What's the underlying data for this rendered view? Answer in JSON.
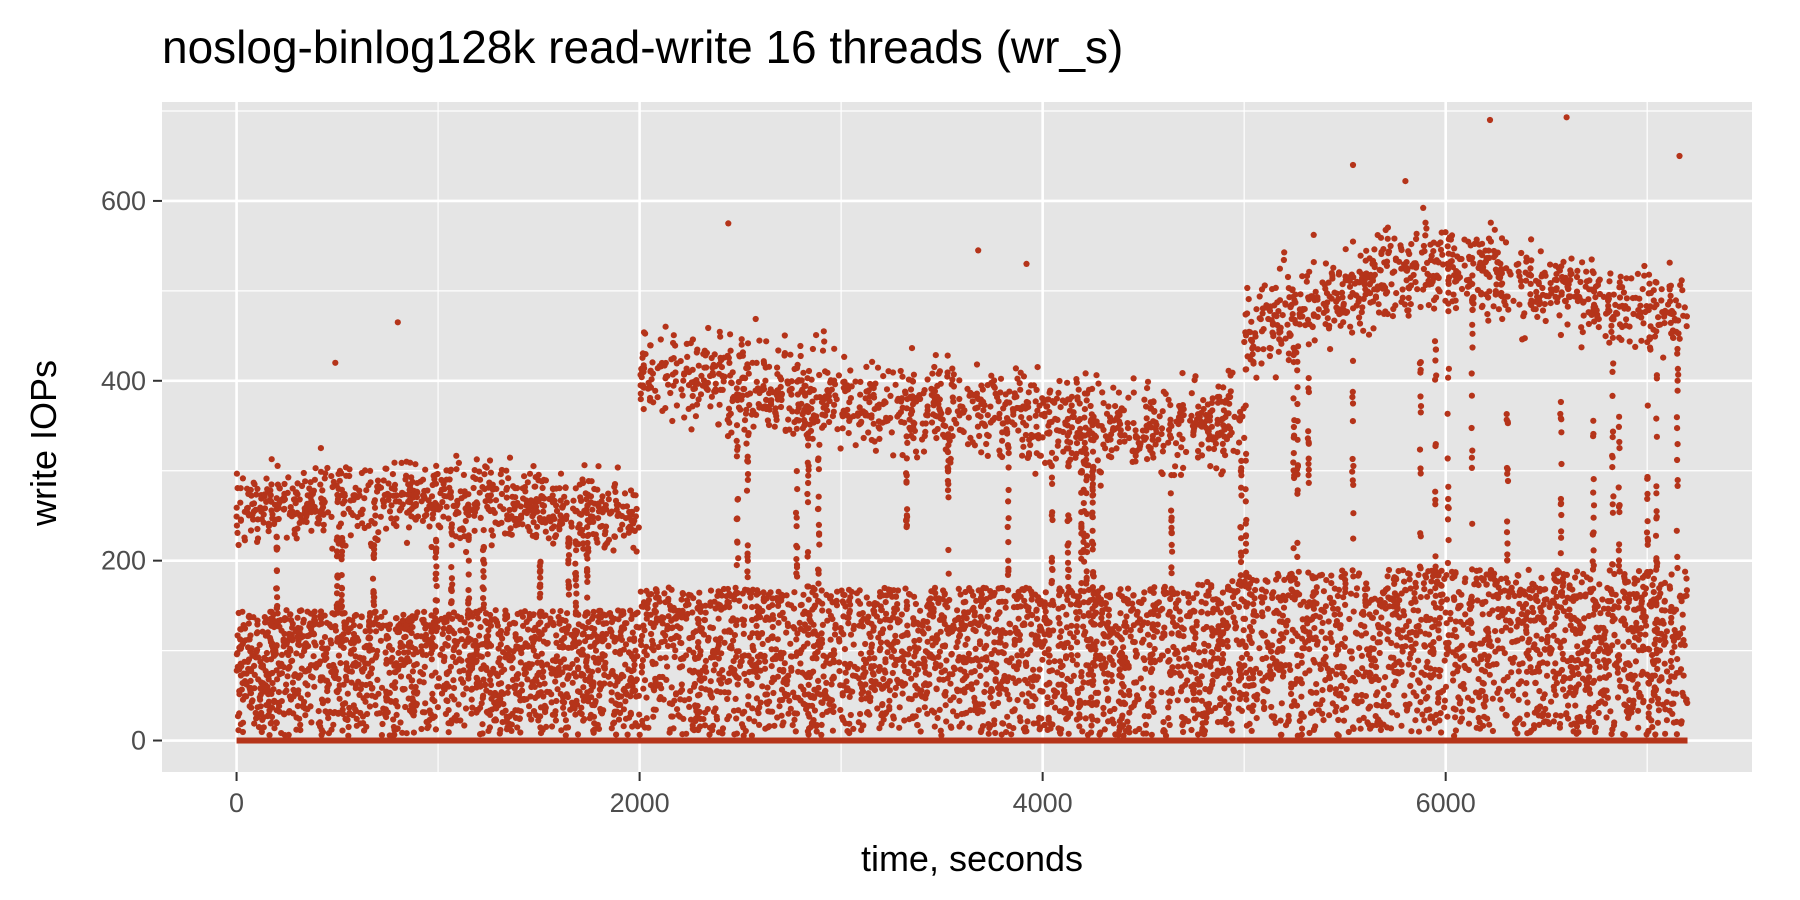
{
  "chart_data": {
    "type": "scatter",
    "title": "noslog-binlog128k read-write 16 threads (wr_s)",
    "xlabel": "time, seconds",
    "ylabel": "write IOPs",
    "xlim": [
      -370,
      7520
    ],
    "ylim": [
      -35,
      710
    ],
    "x_ticks": [
      0,
      2000,
      4000,
      6000
    ],
    "y_ticks": [
      0,
      200,
      400,
      600
    ],
    "x_tick_labels": [
      "0",
      "2000",
      "4000",
      "6000"
    ],
    "y_tick_labels": [
      "0",
      "200",
      "400",
      "600"
    ],
    "grid": true,
    "legend": "none",
    "point_color": "#B5341A",
    "panel_color": "#E5E5E5",
    "x_range": [
      0,
      7200
    ],
    "series": [
      {
        "x": [
          0,
          1000,
          2000,
          2001,
          3000,
          4000,
          4500,
          5000,
          5001,
          5500,
          6000,
          6500,
          7200
        ],
        "upper_band_center": [
          260,
          270,
          250,
          410,
          380,
          360,
          345,
          360,
          450,
          500,
          530,
          500,
          470
        ],
        "lower_band_max": [
          140,
          140,
          140,
          165,
          165,
          165,
          165,
          175,
          180,
          185,
          185,
          185,
          185
        ],
        "baseline": 0
      }
    ],
    "outliers": [
      [
        800,
        465
      ],
      [
        490,
        420
      ],
      [
        2440,
        575
      ],
      [
        3680,
        545
      ],
      [
        3920,
        530
      ],
      [
        6220,
        690
      ],
      [
        6600,
        693
      ],
      [
        5540,
        640
      ],
      [
        7160,
        650
      ],
      [
        5800,
        622
      ]
    ]
  }
}
